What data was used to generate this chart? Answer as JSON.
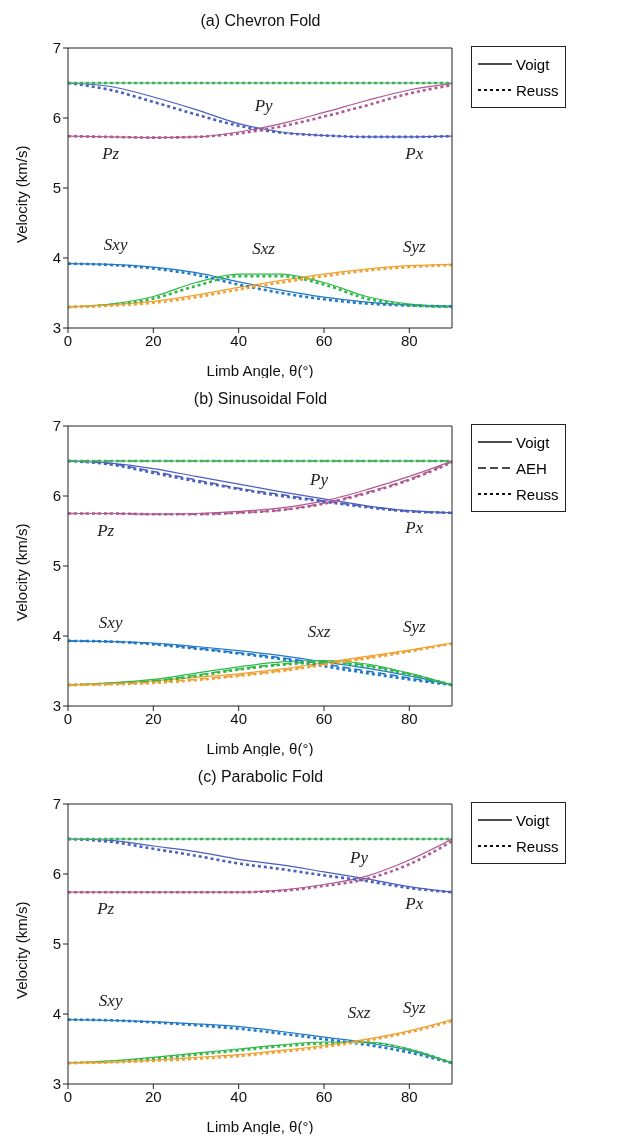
{
  "chart_data": [
    {
      "type": "line",
      "title": "(a) Chevron Fold",
      "xlabel": "Limb Angle, θ(°)",
      "ylabel": "Velocity (km/s)",
      "x": [
        0,
        10,
        20,
        30,
        40,
        50,
        60,
        70,
        80,
        90
      ],
      "xlim": [
        0,
        90
      ],
      "xticks": [
        0,
        20,
        40,
        60,
        80
      ],
      "ylim": [
        3,
        7
      ],
      "yticks": [
        3,
        4,
        5,
        6,
        7
      ],
      "legend": "right",
      "marker": "none",
      "annotations": [
        "Voigt",
        "Reuss"
      ],
      "series": [
        {
          "name": "Px",
          "color": "#4a5fc0",
          "line_style": "solid",
          "values": [
            6.5,
            6.45,
            6.3,
            6.12,
            5.92,
            5.8,
            5.75,
            5.73,
            5.73,
            5.74
          ]
        },
        {
          "name": "Py",
          "color": "#3cb05a",
          "line_style": "solid",
          "values": [
            6.5,
            6.5,
            6.5,
            6.5,
            6.5,
            6.5,
            6.5,
            6.5,
            6.5,
            6.5
          ]
        },
        {
          "name": "Pz",
          "color": "#b05a90",
          "line_style": "solid",
          "values": [
            5.74,
            5.73,
            5.72,
            5.73,
            5.8,
            5.92,
            6.08,
            6.25,
            6.4,
            6.49
          ]
        },
        {
          "name": "Sxy",
          "color": "#1f78c8",
          "line_style": "solid",
          "values": [
            3.92,
            3.91,
            3.87,
            3.79,
            3.66,
            3.54,
            3.44,
            3.37,
            3.33,
            3.31
          ]
        },
        {
          "name": "Sxz",
          "color": "#2fb84a",
          "line_style": "solid",
          "values": [
            3.3,
            3.34,
            3.45,
            3.65,
            3.77,
            3.77,
            3.65,
            3.45,
            3.34,
            3.3
          ]
        },
        {
          "name": "Syz",
          "color": "#f0a030",
          "line_style": "solid",
          "values": [
            3.3,
            3.33,
            3.38,
            3.47,
            3.58,
            3.68,
            3.77,
            3.84,
            3.89,
            3.91
          ]
        },
        {
          "color": "#4a5fc0",
          "line_style": "dotted",
          "values": [
            6.5,
            6.4,
            6.23,
            6.05,
            5.89,
            5.79,
            5.75,
            5.73,
            5.73,
            5.74
          ]
        },
        {
          "color": "#3cb05a",
          "line_style": "dotted",
          "values": [
            6.5,
            6.5,
            6.5,
            6.5,
            6.5,
            6.5,
            6.5,
            6.5,
            6.5,
            6.5
          ]
        },
        {
          "color": "#b05a90",
          "line_style": "dotted",
          "values": [
            5.74,
            5.73,
            5.72,
            5.73,
            5.78,
            5.88,
            6.02,
            6.18,
            6.35,
            6.47
          ]
        },
        {
          "color": "#1f78c8",
          "line_style": "dotted",
          "values": [
            3.92,
            3.9,
            3.85,
            3.76,
            3.62,
            3.5,
            3.41,
            3.35,
            3.32,
            3.31
          ]
        },
        {
          "color": "#2fb84a",
          "line_style": "dotted",
          "values": [
            3.3,
            3.33,
            3.42,
            3.6,
            3.74,
            3.74,
            3.62,
            3.42,
            3.33,
            3.3
          ]
        },
        {
          "color": "#f0a030",
          "line_style": "dotted",
          "values": [
            3.3,
            3.32,
            3.36,
            3.44,
            3.55,
            3.65,
            3.74,
            3.82,
            3.87,
            3.9
          ]
        }
      ]
    },
    {
      "type": "line",
      "title": "(b) Sinusoidal Fold",
      "xlabel": "Limb Angle, θ(°)",
      "ylabel": "Velocity (km/s)",
      "x": [
        0,
        10,
        20,
        30,
        40,
        50,
        60,
        70,
        80,
        90
      ],
      "xlim": [
        0,
        90
      ],
      "xticks": [
        0,
        20,
        40,
        60,
        80
      ],
      "ylim": [
        3,
        7
      ],
      "yticks": [
        3,
        4,
        5,
        6,
        7
      ],
      "legend": "right",
      "marker": "none",
      "annotations": [
        "Voigt",
        "AEH",
        "Reuss"
      ],
      "series": [
        {
          "name": "Px",
          "color": "#4a5fc0",
          "line_style": "solid",
          "values": [
            6.5,
            6.47,
            6.39,
            6.28,
            6.17,
            6.06,
            5.96,
            5.86,
            5.79,
            5.76
          ]
        },
        {
          "name": "Py",
          "color": "#3cb05a",
          "line_style": "solid",
          "values": [
            6.5,
            6.5,
            6.5,
            6.5,
            6.5,
            6.5,
            6.5,
            6.5,
            6.5,
            6.5
          ]
        },
        {
          "name": "Pz",
          "color": "#b05a90",
          "line_style": "solid",
          "values": [
            5.75,
            5.75,
            5.74,
            5.75,
            5.78,
            5.83,
            5.93,
            6.09,
            6.28,
            6.5
          ]
        },
        {
          "name": "Sxy",
          "color": "#1f78c8",
          "line_style": "solid",
          "values": [
            3.93,
            3.92,
            3.9,
            3.85,
            3.79,
            3.72,
            3.63,
            3.54,
            3.43,
            3.3
          ]
        },
        {
          "name": "Sxz",
          "color": "#2fb84a",
          "line_style": "solid",
          "values": [
            3.3,
            3.33,
            3.38,
            3.47,
            3.56,
            3.63,
            3.65,
            3.6,
            3.47,
            3.3
          ]
        },
        {
          "name": "Syz",
          "color": "#f0a030",
          "line_style": "solid",
          "values": [
            3.3,
            3.32,
            3.36,
            3.41,
            3.46,
            3.53,
            3.62,
            3.71,
            3.8,
            3.9
          ]
        },
        {
          "color": "#4a5fc0",
          "line_style": "dashed",
          "values": [
            6.5,
            6.46,
            6.35,
            6.23,
            6.11,
            6.02,
            5.93,
            5.85,
            5.78,
            5.76
          ]
        },
        {
          "color": "#3cb05a",
          "line_style": "dashed",
          "values": [
            6.5,
            6.5,
            6.5,
            6.5,
            6.5,
            6.5,
            6.5,
            6.5,
            6.5,
            6.5
          ]
        },
        {
          "color": "#b05a90",
          "line_style": "dashed",
          "values": [
            5.75,
            5.75,
            5.74,
            5.74,
            5.76,
            5.8,
            5.9,
            6.05,
            6.24,
            6.49
          ]
        },
        {
          "color": "#1f78c8",
          "line_style": "dashed",
          "values": [
            3.93,
            3.92,
            3.89,
            3.83,
            3.76,
            3.69,
            3.6,
            3.5,
            3.4,
            3.3
          ]
        },
        {
          "color": "#2fb84a",
          "line_style": "dashed",
          "values": [
            3.3,
            3.32,
            3.36,
            3.44,
            3.53,
            3.6,
            3.63,
            3.58,
            3.46,
            3.3
          ]
        },
        {
          "color": "#f0a030",
          "line_style": "dashed",
          "values": [
            3.3,
            3.31,
            3.34,
            3.38,
            3.44,
            3.51,
            3.6,
            3.69,
            3.79,
            3.9
          ]
        },
        {
          "color": "#4a5fc0",
          "line_style": "dotted",
          "values": [
            6.5,
            6.45,
            6.33,
            6.21,
            6.1,
            6.0,
            5.92,
            5.84,
            5.78,
            5.76
          ]
        },
        {
          "color": "#3cb05a",
          "line_style": "dotted",
          "values": [
            6.5,
            6.5,
            6.5,
            6.5,
            6.5,
            6.5,
            6.5,
            6.5,
            6.5,
            6.5
          ]
        },
        {
          "color": "#b05a90",
          "line_style": "dotted",
          "values": [
            5.75,
            5.75,
            5.74,
            5.74,
            5.76,
            5.8,
            5.89,
            6.04,
            6.23,
            6.48
          ]
        },
        {
          "color": "#1f78c8",
          "line_style": "dotted",
          "values": [
            3.93,
            3.92,
            3.88,
            3.82,
            3.75,
            3.67,
            3.57,
            3.47,
            3.38,
            3.3
          ]
        },
        {
          "color": "#2fb84a",
          "line_style": "dotted",
          "values": [
            3.3,
            3.32,
            3.35,
            3.43,
            3.52,
            3.59,
            3.62,
            3.57,
            3.45,
            3.3
          ]
        },
        {
          "color": "#f0a030",
          "line_style": "dotted",
          "values": [
            3.3,
            3.31,
            3.33,
            3.37,
            3.43,
            3.5,
            3.59,
            3.68,
            3.78,
            3.89
          ]
        }
      ]
    },
    {
      "type": "line",
      "title": "(c) Parabolic Fold",
      "xlabel": "Limb Angle, θ(°)",
      "ylabel": "Velocity (km/s)",
      "x": [
        0,
        10,
        20,
        30,
        40,
        50,
        60,
        70,
        80,
        90
      ],
      "xlim": [
        0,
        90
      ],
      "xticks": [
        0,
        20,
        40,
        60,
        80
      ],
      "ylim": [
        3,
        7
      ],
      "yticks": [
        3,
        4,
        5,
        6,
        7
      ],
      "legend": "right",
      "marker": "none",
      "annotations": [
        "Voigt",
        "Reuss"
      ],
      "series": [
        {
          "name": "Px",
          "color": "#4a5fc0",
          "line_style": "solid",
          "values": [
            6.5,
            6.48,
            6.4,
            6.32,
            6.21,
            6.13,
            6.03,
            5.93,
            5.82,
            5.74
          ]
        },
        {
          "name": "Py",
          "color": "#3cb05a",
          "line_style": "solid",
          "values": [
            6.5,
            6.5,
            6.5,
            6.5,
            6.5,
            6.5,
            6.5,
            6.5,
            6.5,
            6.5
          ]
        },
        {
          "name": "Pz",
          "color": "#b05a90",
          "line_style": "solid",
          "values": [
            5.74,
            5.74,
            5.74,
            5.74,
            5.74,
            5.77,
            5.85,
            5.97,
            6.2,
            6.5
          ]
        },
        {
          "name": "Sxy",
          "color": "#1f78c8",
          "line_style": "solid",
          "values": [
            3.92,
            3.91,
            3.89,
            3.86,
            3.82,
            3.75,
            3.67,
            3.59,
            3.48,
            3.3
          ]
        },
        {
          "name": "Sxz",
          "color": "#2fb84a",
          "line_style": "solid",
          "values": [
            3.3,
            3.33,
            3.38,
            3.44,
            3.5,
            3.56,
            3.6,
            3.6,
            3.5,
            3.3
          ]
        },
        {
          "name": "Syz",
          "color": "#f0a030",
          "line_style": "solid",
          "values": [
            3.3,
            3.31,
            3.34,
            3.38,
            3.42,
            3.48,
            3.55,
            3.64,
            3.76,
            3.92
          ]
        },
        {
          "color": "#4a5fc0",
          "line_style": "dotted",
          "values": [
            6.5,
            6.46,
            6.36,
            6.26,
            6.15,
            6.07,
            5.98,
            5.9,
            5.8,
            5.74
          ]
        },
        {
          "color": "#3cb05a",
          "line_style": "dotted",
          "values": [
            6.5,
            6.5,
            6.5,
            6.5,
            6.5,
            6.5,
            6.5,
            6.5,
            6.5,
            6.5
          ]
        },
        {
          "color": "#b05a90",
          "line_style": "dotted",
          "values": [
            5.74,
            5.74,
            5.74,
            5.74,
            5.74,
            5.76,
            5.83,
            5.93,
            6.14,
            6.47
          ]
        },
        {
          "color": "#1f78c8",
          "line_style": "dotted",
          "values": [
            3.92,
            3.91,
            3.88,
            3.84,
            3.79,
            3.72,
            3.64,
            3.56,
            3.45,
            3.3
          ]
        },
        {
          "color": "#2fb84a",
          "line_style": "dotted",
          "values": [
            3.3,
            3.32,
            3.36,
            3.42,
            3.48,
            3.54,
            3.58,
            3.59,
            3.49,
            3.3
          ]
        },
        {
          "color": "#f0a030",
          "line_style": "dotted",
          "values": [
            3.3,
            3.31,
            3.33,
            3.36,
            3.4,
            3.46,
            3.53,
            3.62,
            3.74,
            3.9
          ]
        }
      ]
    }
  ]
}
